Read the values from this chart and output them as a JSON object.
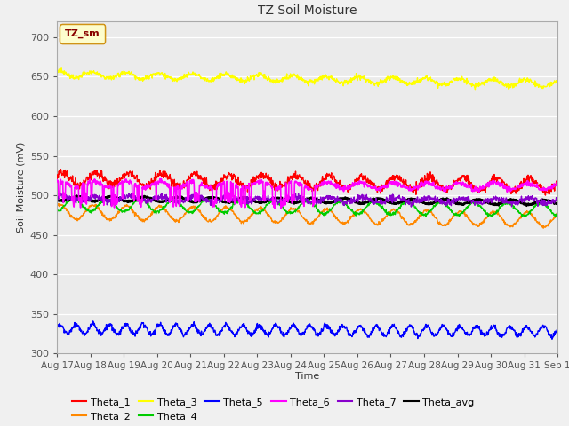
{
  "title": "TZ Soil Moisture",
  "xlabel": "Time",
  "ylabel": "Soil Moisture (mV)",
  "ylim": [
    300,
    720
  ],
  "yticks": [
    300,
    350,
    400,
    450,
    500,
    550,
    600,
    650,
    700
  ],
  "days": 15,
  "points_per_day": 96,
  "series": {
    "Theta_1": {
      "color": "#FF0000",
      "base": 521,
      "trend": -8,
      "amplitude": 8,
      "noise": 2.5,
      "wave_freq": 1.0
    },
    "Theta_2": {
      "color": "#FF8800",
      "base": 479,
      "trend": -10,
      "amplitude": 9,
      "noise": 1.0,
      "wave_freq": 1.0
    },
    "Theta_3": {
      "color": "#FFFF00",
      "base": 653,
      "trend": -12,
      "amplitude": 4,
      "noise": 1.5,
      "wave_freq": 1.0
    },
    "Theta_4": {
      "color": "#00CC00",
      "base": 488,
      "trend": -6,
      "amplitude": 8,
      "noise": 1.0,
      "wave_freq": 1.0
    },
    "Theta_5": {
      "color": "#0000FF",
      "base": 331,
      "trend": -3,
      "amplitude": 6,
      "noise": 1.5,
      "wave_freq": 2.0
    },
    "Theta_6": {
      "color": "#FF00FF",
      "base": 514,
      "trend": -3,
      "amplitude": 4,
      "noise": 1.5,
      "wave_freq": 1.0,
      "spikes": true,
      "spike_half": 0.55,
      "spike_prob": 0.08,
      "spike_depth": 25
    },
    "Theta_7": {
      "color": "#8800CC",
      "base": 496,
      "trend": -3,
      "amplitude": 3,
      "noise": 2.0,
      "wave_freq": 1.0
    },
    "Theta_avg": {
      "color": "#000000",
      "base": 496,
      "trend": -5,
      "amplitude": 3,
      "noise": 0.5,
      "wave_freq": 1.0
    }
  },
  "draw_order": [
    "Theta_3",
    "Theta_2",
    "Theta_4",
    "Theta_5",
    "Theta_avg",
    "Theta_7",
    "Theta_1",
    "Theta_6"
  ],
  "legend_box_label": "TZ_sm",
  "legend_box_bg": "#FFFFCC",
  "legend_box_edge": "#CC8800",
  "legend_label_color": "#880000",
  "background_color": "#EBEBEB",
  "fig_bg_color": "#F0F0F0",
  "xtick_labels": [
    "Aug 17",
    "Aug 18",
    "Aug 19",
    "Aug 20",
    "Aug 21",
    "Aug 22",
    "Aug 23",
    "Aug 24",
    "Aug 25",
    "Aug 26",
    "Aug 27",
    "Aug 28",
    "Aug 29",
    "Aug 30",
    "Aug 31",
    "Sep 1"
  ],
  "legend_order": [
    "Theta_1",
    "Theta_2",
    "Theta_3",
    "Theta_4",
    "Theta_5",
    "Theta_6",
    "Theta_7",
    "Theta_avg"
  ]
}
